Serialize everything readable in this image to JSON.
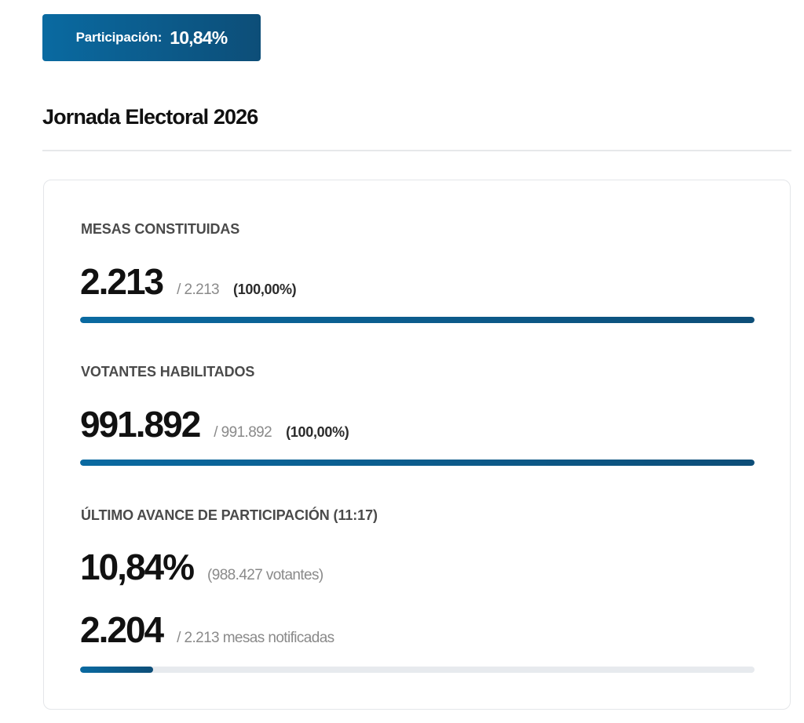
{
  "badge": {
    "label": "Participación:",
    "value": "10,84%"
  },
  "page_title": "Jornada Electoral 2026",
  "colors": {
    "accent_start": "#0a6aa1",
    "accent_end": "#0d4e78",
    "track": "#e7eaee"
  },
  "sections": {
    "mesas": {
      "label": "MESAS CONSTITUIDAS",
      "value": "2.213",
      "total": "/ 2.213",
      "percent": "(100,00%)",
      "progress": 1.0
    },
    "votantes": {
      "label": "VOTANTES HABILITADOS",
      "value": "991.892",
      "total": "/ 991.892",
      "percent": "(100,00%)",
      "progress": 1.0
    },
    "avance": {
      "label": "ÚLTIMO AVANCE DE PARTICIPACIÓN (11:17)",
      "participation": "10,84%",
      "voters_note": "(988.427 votantes)",
      "mesas_value": "2.204",
      "mesas_note": "/ 2.213 mesas notificadas",
      "progress": 0.108
    }
  }
}
